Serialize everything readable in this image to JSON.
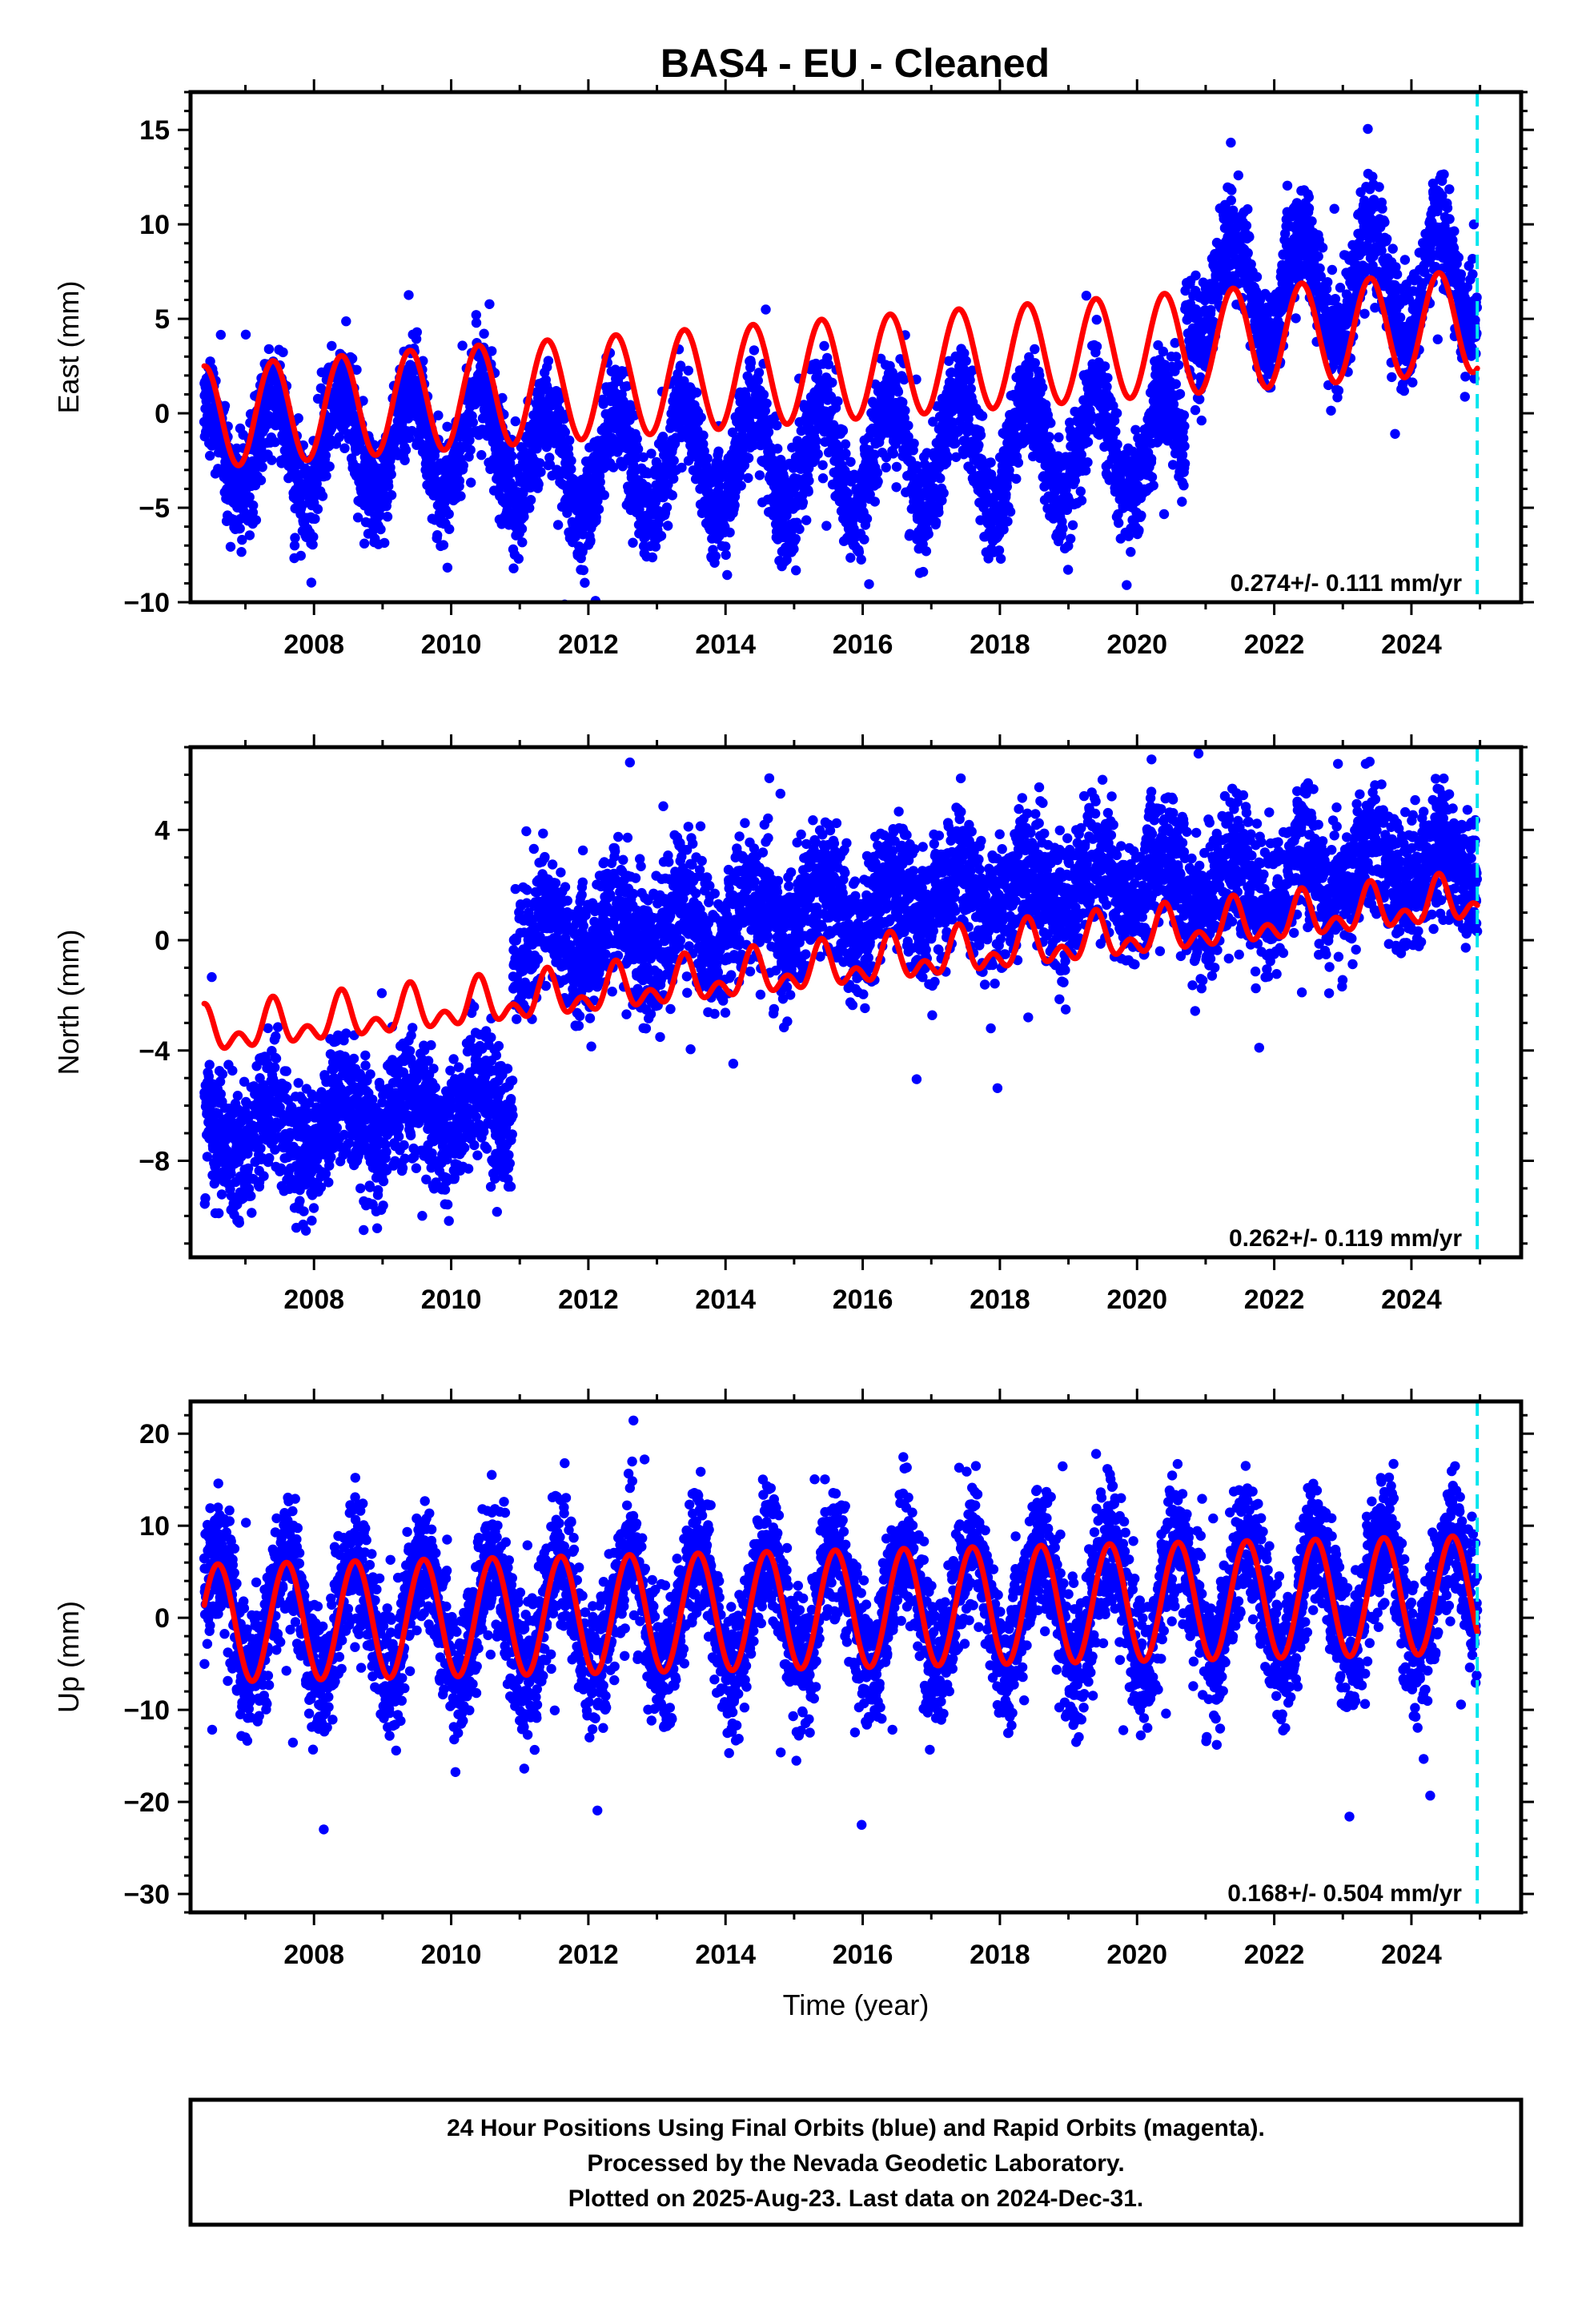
{
  "title": "BAS4  - EU - Cleaned",
  "colors": {
    "observations": "#0000ff",
    "model": "#ff0000",
    "last_data_marker": "#00e5ee",
    "frame": "#000000"
  },
  "chart_data": [
    {
      "type": "scatter",
      "component": "east",
      "ylabel": "East (mm)",
      "xlabel": "",
      "xlim": [
        2006.2,
        2025.6
      ],
      "ylim": [
        -10,
        17
      ],
      "yticks": [
        -10,
        -5,
        0,
        5,
        10,
        15
      ],
      "yminor_step": 1,
      "xticks": [
        2008,
        2010,
        2012,
        2014,
        2016,
        2018,
        2020,
        2022,
        2024
      ],
      "rate_text": "0.274+/- 0.111 mm/yr",
      "data_start": 2006.4,
      "data_end": 2024.96,
      "last_data": 2024.96,
      "series": [
        {
          "name": "",
          "kind": "points",
          "color": "#0000ff",
          "trend": {
            "offset": -1.8,
            "rate": 0.12,
            "ref_year": 2006.4
          },
          "annual_amplitude": 2.8,
          "annual_phase_year": 2007.4,
          "scatter_mm": 1.4,
          "steps": [
            {
              "year": 2010.9,
              "delta": -1.6
            },
            {
              "year": 2020.7,
              "delta": 8.2
            }
          ]
        },
        {
          "name": "",
          "kind": "model",
          "color": "#ff0000",
          "trend": {
            "offset": -0.2,
            "rate": 0.274,
            "ref_year": 2006.4
          },
          "annual_amplitude": 2.7,
          "annual_phase_year": 2007.4
        }
      ]
    },
    {
      "type": "scatter",
      "component": "north",
      "ylabel": "North (mm)",
      "xlabel": "",
      "xlim": [
        2006.2,
        2025.6
      ],
      "ylim": [
        -11.5,
        7
      ],
      "yticks": [
        -8,
        -4,
        0,
        4
      ],
      "yminor_step": 1,
      "xticks": [
        2008,
        2010,
        2012,
        2014,
        2016,
        2018,
        2020,
        2022,
        2024
      ],
      "rate_text": "0.262+/- 0.119 mm/yr",
      "data_start": 2006.4,
      "data_end": 2024.96,
      "last_data": 2024.96,
      "series": [
        {
          "name": "",
          "kind": "points",
          "color": "#0000ff",
          "trend": {
            "offset": -7.2,
            "rate": 0.25,
            "ref_year": 2006.4
          },
          "annual_amplitude": 0.9,
          "annual_phase_year": 2007.4,
          "scatter_mm": 1.2,
          "steps": [
            {
              "year": 2010.9,
              "delta": 6.0
            },
            {
              "year": 2020.7,
              "delta": -0.6
            }
          ]
        },
        {
          "name": "",
          "kind": "model",
          "color": "#ff0000",
          "trend": {
            "offset": -3.4,
            "rate": 0.262,
            "ref_year": 2006.4
          },
          "annual_amplitude": 0.6,
          "annual_phase_year": 2007.4,
          "semiannual_amplitude": 0.5
        }
      ]
    },
    {
      "type": "scatter",
      "component": "up",
      "ylabel": "Up (mm)",
      "xlabel": "Time (year)",
      "xlim": [
        2006.2,
        2025.6
      ],
      "ylim": [
        -32,
        23.5
      ],
      "yticks": [
        -30,
        -20,
        -10,
        0,
        10,
        20
      ],
      "yminor_step": 2,
      "xticks": [
        2008,
        2010,
        2012,
        2014,
        2016,
        2018,
        2020,
        2022,
        2024
      ],
      "rate_text": "0.168+/- 0.504 mm/yr",
      "data_start": 2006.4,
      "data_end": 2024.96,
      "last_data": 2024.96,
      "series": [
        {
          "name": "",
          "kind": "points",
          "color": "#0000ff",
          "trend": {
            "offset": -0.5,
            "rate": 0.16,
            "ref_year": 2006.4
          },
          "annual_amplitude": 6.5,
          "annual_phase_year": 2007.6,
          "scatter_mm": 3.6,
          "steps": []
        },
        {
          "name": "",
          "kind": "model",
          "color": "#ff0000",
          "trend": {
            "offset": -0.6,
            "rate": 0.168,
            "ref_year": 2006.4
          },
          "annual_amplitude": 6.4,
          "annual_phase_year": 2007.6
        }
      ]
    }
  ],
  "footer": {
    "line1": "24 Hour Positions Using Final Orbits (blue) and Rapid Orbits (magenta).",
    "line2": "Processed by the Nevada Geodetic Laboratory.",
    "line3": "Plotted on 2025-Aug-23. Last data on 2024-Dec-31."
  }
}
